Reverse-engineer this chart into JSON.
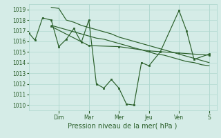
{
  "bg_color": "#d5ece7",
  "grid_color": "#b0d8d0",
  "line_color": "#2a5f2a",
  "marker_color": "#2a5f2a",
  "xlabel": "Pression niveau de la mer( hPa )",
  "ylim": [
    1009.5,
    1019.5
  ],
  "yticks": [
    1010,
    1011,
    1012,
    1013,
    1014,
    1015,
    1016,
    1017,
    1018,
    1019
  ],
  "xlim": [
    0,
    300
  ],
  "day_labels": [
    "Dim",
    "Mar",
    "Mer",
    "Jeu",
    "Ven",
    "S"
  ],
  "day_positions": [
    48,
    96,
    144,
    192,
    240,
    288
  ],
  "series0_x": [
    0,
    10,
    22,
    36,
    48,
    60,
    72,
    84,
    96,
    108,
    120,
    132,
    144,
    156,
    168,
    180,
    192,
    210,
    240,
    252,
    264,
    288
  ],
  "series0_y": [
    1016.8,
    1016.1,
    1018.2,
    1018.0,
    1015.5,
    1016.2,
    1017.2,
    1015.9,
    1018.0,
    1012.0,
    1011.6,
    1012.4,
    1011.6,
    1010.1,
    1010.0,
    1014.0,
    1013.7,
    1015.0,
    1018.9,
    1017.0,
    1014.3,
    1014.8
  ],
  "series1_x": [
    36,
    48,
    60,
    72,
    84,
    96,
    108,
    120,
    132,
    144,
    156,
    168,
    180,
    192,
    204,
    216,
    228,
    240,
    252,
    264,
    276,
    288
  ],
  "series1_y": [
    1019.2,
    1019.1,
    1018.0,
    1017.8,
    1017.5,
    1017.3,
    1017.1,
    1016.9,
    1016.7,
    1016.4,
    1016.2,
    1016.0,
    1015.8,
    1015.6,
    1015.4,
    1015.2,
    1015.0,
    1014.8,
    1014.6,
    1014.4,
    1014.2,
    1014.0
  ],
  "series2_x": [
    36,
    48,
    60,
    72,
    84,
    96,
    108,
    120,
    132,
    144,
    156,
    168,
    180,
    192,
    204,
    216,
    228,
    240,
    252,
    264,
    276,
    288
  ],
  "series2_y": [
    1017.5,
    1017.3,
    1017.1,
    1016.9,
    1016.7,
    1016.5,
    1016.3,
    1016.2,
    1016.0,
    1015.8,
    1015.6,
    1015.4,
    1015.2,
    1015.0,
    1014.8,
    1014.7,
    1014.5,
    1014.3,
    1014.1,
    1014.0,
    1013.8,
    1013.7
  ],
  "series3_x": [
    36,
    96,
    144,
    192,
    240,
    288
  ],
  "series3_y": [
    1017.4,
    1015.6,
    1015.5,
    1015.1,
    1014.9,
    1014.7
  ],
  "tick_fontsize": 5.5,
  "label_fontsize": 7.0
}
